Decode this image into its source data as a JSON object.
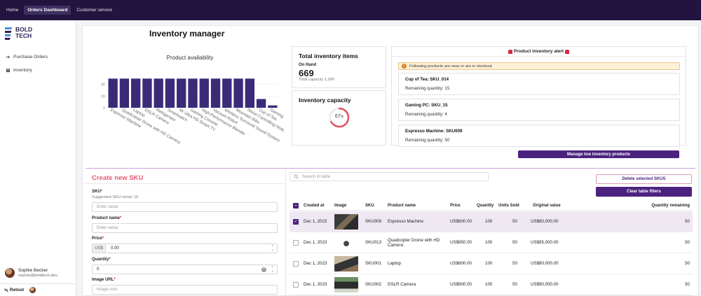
{
  "topbar": {
    "tabs": [
      "Home",
      "Orders Dashboard",
      "Customer service"
    ]
  },
  "sidebar": {
    "logo": "BOLD TECH",
    "nav": [
      "Purchase Orders",
      "Inventory"
    ],
    "user": {
      "name": "Sophie Becker",
      "email": "sophie@boldtech.dev"
    },
    "footer_label": "Retool"
  },
  "page_title": "Inventory manager",
  "chart_data": {
    "type": "bar",
    "title": "Product availability",
    "categories": [
      "Espresso Machine",
      "Quadcopter Drone with HD Camera",
      "Laptop",
      "DSLR Camera",
      "Refrigerator",
      "Smartwatch",
      "4K Ultra HD Smart TV",
      "Gaming Console",
      "High-Performance Blender",
      "Vacuum Robot",
      "Wireless Surround Sound System",
      "Mountain Bike",
      "Noise-Cancelling Headphones",
      "Cup of Tea",
      "Gaming PC"
    ],
    "values": [
      50,
      50,
      50,
      50,
      50,
      50,
      50,
      50,
      50,
      50,
      50,
      50,
      50,
      15,
      4
    ],
    "y_ticks": [
      "0",
      "20",
      "40"
    ],
    "ylim": [
      0,
      60
    ],
    "bar_color": "#3b2a78"
  },
  "total_inventory": {
    "title": "Total inventory items",
    "on_hand_label": "On Hand",
    "on_hand_value": "669",
    "capacity_text": "Total capacity 1,000"
  },
  "inventory_capacity": {
    "title": "Inventory capacity",
    "percent": 67,
    "percent_label": "67",
    "percent_unit": "%"
  },
  "alert": {
    "title": "Product inventory alert",
    "warning": "Following products are near or are in stockout",
    "items": [
      {
        "name": "Cup of Tea: SKU_014",
        "remaining": "Remaining quantity: 15"
      },
      {
        "name": "Gaming PC: SKU_15",
        "remaining": "Remaining quantity: 4"
      },
      {
        "name": "Espresso Machine: SKU009",
        "remaining": "Remaining quantity: 50"
      }
    ],
    "button": "Manage low inventory products"
  },
  "form": {
    "title": "Create new SKU",
    "sku_label": "SKU",
    "sku_hint": "Suggested SKU serial: 16",
    "sku_placeholder": "Enter value",
    "name_label": "Product name",
    "name_placeholder": "Enter value",
    "price_label": "Price",
    "price_prefix": "US$",
    "price_value": "0.00",
    "qty_label": "Quantity",
    "qty_value": "0",
    "image_label": "Image URL",
    "image_placeholder": "image.com",
    "required_mark": "*"
  },
  "table": {
    "search_placeholder": "Search in table",
    "delete_button": "Delete selected SKUS",
    "clear_button": "Clear table filters",
    "columns": [
      "Created at",
      "Image",
      "SKU",
      "Product name",
      "Price",
      "Quantity",
      "Units Sold",
      "Original value",
      "Quantity remaining"
    ],
    "rows": [
      {
        "created": "Dec 1, 2023",
        "sku": "SKU009",
        "name": "Espresso Machine",
        "price": "US$800.00",
        "qty": "100",
        "sold": "50",
        "orig": "US$80,000.00",
        "remaining": "50",
        "selected": true
      },
      {
        "created": "Dec 1, 2023",
        "sku": "SKU013",
        "name": "Quadcopter Drone with HD Camera",
        "price": "US$950.00",
        "qty": "100",
        "sold": "50",
        "orig": "US$95,000.00",
        "remaining": "50",
        "selected": false
      },
      {
        "created": "Dec 1, 2023",
        "sku": "SKU001",
        "name": "Laptop",
        "price": "US$800.00",
        "qty": "100",
        "sold": "50",
        "orig": "US$80,000.00",
        "remaining": "50",
        "selected": false
      },
      {
        "created": "Dec 1, 2023",
        "sku": "SKU002",
        "name": "DSLR Camera",
        "price": "US$900.00",
        "qty": "100",
        "sold": "50",
        "orig": "US$90,000.00",
        "remaining": "50",
        "selected": false
      }
    ]
  },
  "colors": {
    "topbar": "#23143f",
    "accent": "#4c2280",
    "form_title": "#e45b6f",
    "gauge": "#e0525f"
  }
}
